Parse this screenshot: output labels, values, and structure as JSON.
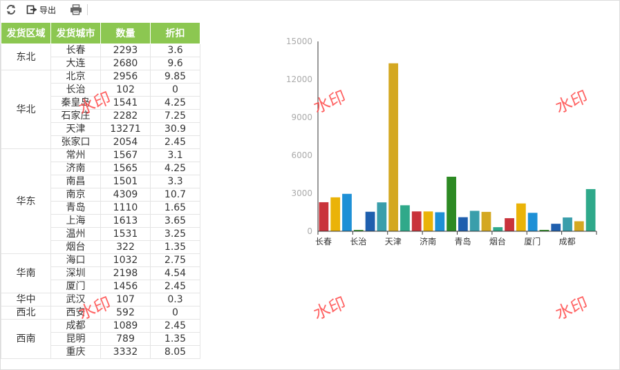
{
  "toolbar": {
    "export_label": "导出"
  },
  "table": {
    "headers": [
      "发货区域",
      "发货城市",
      "数量",
      "折扣"
    ],
    "groups": [
      {
        "region": "东北",
        "rows": [
          [
            "长春",
            "2293",
            "3.6"
          ],
          [
            "大连",
            "2680",
            "9.6"
          ]
        ]
      },
      {
        "region": "华北",
        "rows": [
          [
            "北京",
            "2956",
            "9.85"
          ],
          [
            "长治",
            "102",
            "0"
          ],
          [
            "秦皇岛",
            "1541",
            "4.25"
          ],
          [
            "石家庄",
            "2282",
            "7.25"
          ],
          [
            "天津",
            "13271",
            "30.9"
          ],
          [
            "张家口",
            "2054",
            "2.45"
          ]
        ]
      },
      {
        "region": "华东",
        "rows": [
          [
            "常州",
            "1567",
            "3.1"
          ],
          [
            "济南",
            "1565",
            "4.25"
          ],
          [
            "南昌",
            "1501",
            "3.3"
          ],
          [
            "南京",
            "4309",
            "10.7"
          ],
          [
            "青岛",
            "1110",
            "1.65"
          ],
          [
            "上海",
            "1613",
            "3.65"
          ],
          [
            "温州",
            "1531",
            "3.25"
          ],
          [
            "烟台",
            "322",
            "1.35"
          ]
        ]
      },
      {
        "region": "华南",
        "rows": [
          [
            "海口",
            "1032",
            "2.75"
          ],
          [
            "深圳",
            "2198",
            "4.54"
          ],
          [
            "厦门",
            "1456",
            "2.45"
          ]
        ]
      },
      {
        "region": "华中",
        "rows": [
          [
            "武汉",
            "107",
            "0.3"
          ]
        ]
      },
      {
        "region": "西北",
        "rows": [
          [
            "西安",
            "592",
            "0"
          ]
        ]
      },
      {
        "region": "西南",
        "rows": [
          [
            "成都",
            "1089",
            "2.45"
          ],
          [
            "昆明",
            "789",
            "1.35"
          ],
          [
            "重庆",
            "3332",
            "8.05"
          ]
        ]
      }
    ]
  },
  "chart_data": {
    "type": "bar",
    "categories": [
      "长春",
      "大连",
      "北京",
      "长治",
      "秦皇岛",
      "石家庄",
      "天津",
      "张家口",
      "常州",
      "济南",
      "南昌",
      "南京",
      "青岛",
      "上海",
      "温州",
      "烟台",
      "海口",
      "深圳",
      "厦门",
      "武汉",
      "西安",
      "成都",
      "昆明",
      "重庆"
    ],
    "values": [
      2293,
      2680,
      2956,
      102,
      1541,
      2282,
      13271,
      2054,
      1567,
      1565,
      1501,
      4309,
      1110,
      1613,
      1531,
      322,
      1032,
      2198,
      1456,
      107,
      592,
      1089,
      789,
      3332
    ],
    "visible_x_labels": [
      "长春",
      "长治",
      "天津",
      "济南",
      "青岛",
      "烟台",
      "厦门",
      "成都"
    ],
    "y_ticks": [
      0,
      3000,
      6000,
      9000,
      12000,
      15000
    ],
    "ylim": [
      0,
      15000
    ],
    "colors": [
      "#c9333b",
      "#eab308",
      "#1e90d6",
      "#2d8a23",
      "#1f5fae",
      "#3a9eab",
      "#d4a821",
      "#2fa98a"
    ]
  },
  "watermark": {
    "text": "水印"
  }
}
